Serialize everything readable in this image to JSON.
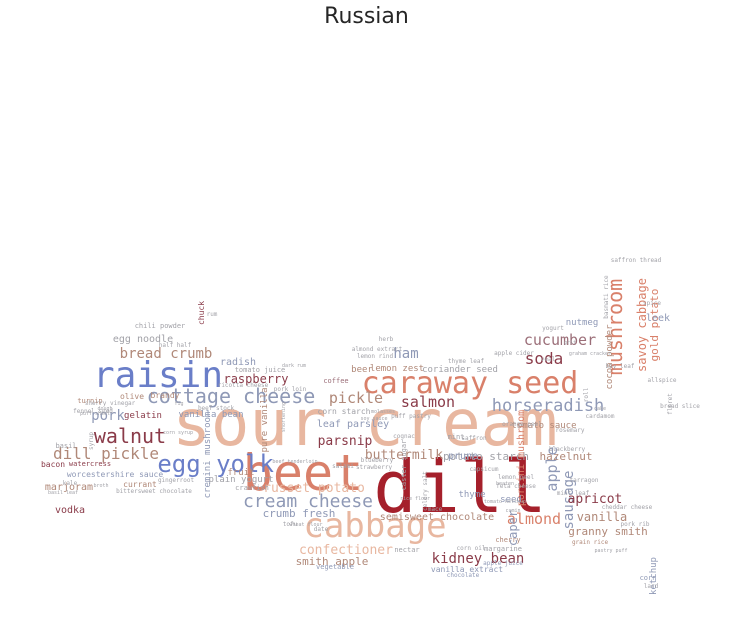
{
  "title": "Russian",
  "colors": {
    "dark_red": "#a5202b",
    "red": "#c0484b",
    "salmon": "#d9806a",
    "peach": "#e8b7a0",
    "tan": "#b08878",
    "mauve": "#9b6e78",
    "maroon": "#8a3b49",
    "blue": "#6a7ec8",
    "slate": "#8f99b6",
    "gray": "#a2a2a8"
  },
  "words": [
    {
      "text": "sour cream",
      "color": "peach"
    },
    {
      "text": "beet",
      "color": "salmon"
    },
    {
      "text": "dill",
      "color": "dark_red"
    },
    {
      "text": "caraway seed",
      "color": "salmon"
    },
    {
      "text": "cabbage",
      "color": "peach"
    },
    {
      "text": "raisin",
      "color": "blue"
    },
    {
      "text": "yolk",
      "color": "blue"
    },
    {
      "text": "egg",
      "color": "blue"
    },
    {
      "text": "cottage cheese",
      "color": "slate"
    },
    {
      "text": "walnut",
      "color": "maroon"
    },
    {
      "text": "dill pickle",
      "color": "tan"
    },
    {
      "text": "mushroom",
      "color": "salmon"
    },
    {
      "text": "cream cheese",
      "color": "slate"
    },
    {
      "text": "horseradish",
      "color": "slate"
    },
    {
      "text": "cucumber",
      "color": "mauve"
    },
    {
      "text": "soda",
      "color": "maroon"
    },
    {
      "text": "salmon",
      "color": "maroon"
    },
    {
      "text": "pickle",
      "color": "tan"
    },
    {
      "text": "almond",
      "color": "salmon"
    },
    {
      "text": "kidney bean",
      "color": "maroon"
    },
    {
      "text": "bread crumb",
      "color": "tan"
    },
    {
      "text": "confectioner",
      "color": "peach"
    },
    {
      "text": "apple",
      "color": "slate"
    },
    {
      "text": "sausage",
      "color": "slate"
    },
    {
      "text": "ham",
      "color": "slate"
    },
    {
      "text": "pork",
      "color": "slate"
    },
    {
      "text": "buttermilk",
      "color": "tan"
    },
    {
      "text": "parsnip",
      "color": "maroon"
    },
    {
      "text": "russet potato",
      "color": "peach"
    },
    {
      "text": "crumb fresh",
      "color": "slate"
    },
    {
      "text": "raspberry",
      "color": "maroon"
    },
    {
      "text": "savoy cabbage",
      "color": "salmon"
    },
    {
      "text": "gold potato",
      "color": "salmon"
    },
    {
      "text": "granny smith",
      "color": "tan"
    },
    {
      "text": "vanilla",
      "color": "tan"
    },
    {
      "text": "apricot",
      "color": "maroon"
    },
    {
      "text": "caper",
      "color": "slate"
    },
    {
      "text": "smith apple",
      "color": "tan"
    },
    {
      "text": "potato starch",
      "color": "gray"
    },
    {
      "text": "hazelnut",
      "color": "tan"
    },
    {
      "text": "porcini mushroom",
      "color": "salmon"
    },
    {
      "text": "tomato sauce",
      "color": "tan"
    },
    {
      "text": "lemon zest",
      "color": "tan"
    },
    {
      "text": "coriander seed",
      "color": "gray"
    },
    {
      "text": "semisweet chocolate",
      "color": "tan"
    },
    {
      "text": "leaf parsley",
      "color": "slate"
    },
    {
      "text": "prune",
      "color": "slate"
    },
    {
      "text": "egg noodle",
      "color": "gray"
    },
    {
      "text": "radish",
      "color": "slate"
    },
    {
      "text": "gelatin",
      "color": "maroon"
    },
    {
      "text": "worcestershire sauce",
      "color": "slate"
    },
    {
      "text": "marjoram",
      "color": "tan"
    },
    {
      "text": "vodka",
      "color": "maroon"
    },
    {
      "text": "bacon",
      "color": "maroon"
    },
    {
      "text": "plain yogurt",
      "color": "gray"
    },
    {
      "text": "fruit",
      "color": "tan"
    },
    {
      "text": "vanilla bean",
      "color": "slate"
    },
    {
      "text": "pure vanilla",
      "color": "tan"
    },
    {
      "text": "cremini mushroom",
      "color": "slate"
    },
    {
      "text": "leek",
      "color": "slate"
    },
    {
      "text": "nutmeg",
      "color": "slate"
    },
    {
      "text": "cocoa powder",
      "color": "tan"
    },
    {
      "text": "thyme",
      "color": "slate"
    },
    {
      "text": "seed",
      "color": "slate"
    },
    {
      "text": "beer",
      "color": "tan"
    },
    {
      "text": "corn starch",
      "color": "gray"
    },
    {
      "text": "chuck",
      "color": "maroon"
    },
    {
      "text": "chili powder",
      "color": "gray"
    },
    {
      "text": "olive",
      "color": "tan"
    },
    {
      "text": "brandy",
      "color": "tan"
    },
    {
      "text": "currant",
      "color": "tan"
    },
    {
      "text": "turnip",
      "color": "tan"
    },
    {
      "text": "basil",
      "color": "gray"
    },
    {
      "text": "ketchup",
      "color": "slate"
    },
    {
      "text": "fennel seed",
      "color": "gray"
    },
    {
      "text": "half half",
      "color": "gray"
    },
    {
      "text": "watercress",
      "color": "maroon"
    },
    {
      "text": "tomato juice",
      "color": "gray"
    },
    {
      "text": "ricotta cheese",
      "color": "gray"
    },
    {
      "text": "coffee",
      "color": "mauve"
    },
    {
      "text": "pork loin",
      "color": "gray"
    },
    {
      "text": "vanilla extract",
      "color": "slate"
    },
    {
      "text": "beef stock",
      "color": "gray"
    },
    {
      "text": "salami",
      "color": "gray"
    },
    {
      "text": "date",
      "color": "gray"
    },
    {
      "text": "tofu",
      "color": "gray"
    },
    {
      "text": "nectar",
      "color": "gray"
    },
    {
      "text": "vegetable",
      "color": "slate"
    },
    {
      "text": "margarine",
      "color": "gray"
    },
    {
      "text": "cherry",
      "color": "tan"
    },
    {
      "text": "corn oil",
      "color": "gray"
    },
    {
      "text": "chocolate",
      "color": "slate"
    },
    {
      "text": "apple juice",
      "color": "slate"
    },
    {
      "text": "grain rice",
      "color": "tan"
    },
    {
      "text": "pork rib",
      "color": "gray"
    },
    {
      "text": "corn",
      "color": "slate"
    },
    {
      "text": "lard",
      "color": "gray"
    },
    {
      "text": "cheddar cheese",
      "color": "gray"
    },
    {
      "text": "pastry puff",
      "color": "gray"
    },
    {
      "text": "mint leaf",
      "color": "gray"
    },
    {
      "text": "tarragon",
      "color": "gray"
    },
    {
      "text": "rosemary",
      "color": "gray"
    },
    {
      "text": "lemon peel",
      "color": "gray"
    },
    {
      "text": "feta cheese",
      "color": "gray"
    },
    {
      "text": "blackberry",
      "color": "gray"
    },
    {
      "text": "veal",
      "color": "gray"
    },
    {
      "text": "mint",
      "color": "gray"
    },
    {
      "text": "orange peel",
      "color": "gray"
    },
    {
      "text": "yogurt",
      "color": "gray"
    },
    {
      "text": "apple cider",
      "color": "gray"
    },
    {
      "text": "thyme leaf",
      "color": "gray"
    },
    {
      "text": "herb",
      "color": "gray"
    },
    {
      "text": "almond extract",
      "color": "gray"
    },
    {
      "text": "lemon rind",
      "color": "gray"
    },
    {
      "text": "dark rum",
      "color": "gray"
    },
    {
      "text": "saffron",
      "color": "gray"
    },
    {
      "text": "caster sugar",
      "color": "gray"
    },
    {
      "text": "blueberry",
      "color": "gray"
    },
    {
      "text": "strawberry",
      "color": "gray"
    },
    {
      "text": "puff pastry",
      "color": "gray"
    },
    {
      "text": "cognac",
      "color": "gray"
    },
    {
      "text": "cardamom",
      "color": "gray"
    },
    {
      "text": "roll",
      "color": "gray"
    },
    {
      "text": "bay leaf",
      "color": "gray"
    },
    {
      "text": "saffron thread",
      "color": "gray"
    },
    {
      "text": "basmati rice",
      "color": "gray"
    },
    {
      "text": "grit",
      "color": "gray"
    },
    {
      "text": "allspice",
      "color": "gray"
    },
    {
      "text": "floret",
      "color": "gray"
    },
    {
      "text": "bread slice",
      "color": "gray"
    },
    {
      "text": "cake",
      "color": "gray"
    },
    {
      "text": "rum",
      "color": "gray"
    },
    {
      "text": "sherry vinegar",
      "color": "gray"
    },
    {
      "text": "puff sheet",
      "color": "gray"
    },
    {
      "text": "bittersweet chocolate",
      "color": "gray"
    },
    {
      "text": "dough",
      "color": "gray"
    },
    {
      "text": "basil leaf",
      "color": "gray"
    },
    {
      "text": "kale",
      "color": "gray"
    },
    {
      "text": "syrup",
      "color": "gray"
    },
    {
      "text": "corn syrup",
      "color": "gray"
    },
    {
      "text": "gingerroot",
      "color": "gray"
    },
    {
      "text": "crawfish",
      "color": "gray"
    },
    {
      "text": "beef tenderloin",
      "color": "gray"
    },
    {
      "text": "wheat flour",
      "color": "gray"
    },
    {
      "text": "shortening",
      "color": "gray"
    },
    {
      "text": "celery salt",
      "color": "gray"
    },
    {
      "text": "beaten",
      "color": "gray"
    },
    {
      "text": "tomato ketchup",
      "color": "gray"
    },
    {
      "text": "capsicum",
      "color": "gray"
    },
    {
      "text": "cumin",
      "color": "gray"
    },
    {
      "text": "mace",
      "color": "gray"
    },
    {
      "text": "rice flour",
      "color": "gray"
    },
    {
      "text": "molasses",
      "color": "gray"
    },
    {
      "text": "broth",
      "color": "gray"
    },
    {
      "text": "soy sauce",
      "color": "gray"
    },
    {
      "text": "fig",
      "color": "gray"
    },
    {
      "text": "spice",
      "color": "gray"
    },
    {
      "text": "graham cracker",
      "color": "gray"
    }
  ]
}
